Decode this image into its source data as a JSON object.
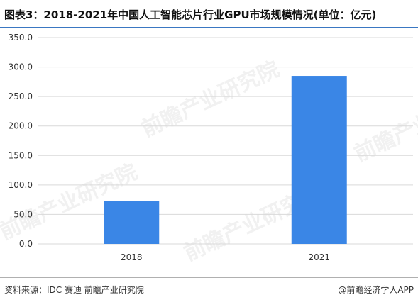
{
  "title": "图表3：2018-2021年中国人工智能芯片行业GPU市场规模情况(单位：亿元)",
  "source": "资料来源：IDC 赛迪 前瞻产业研究院",
  "brand": "@前瞻经济学人APP",
  "watermark_text": "前瞻产业研究院",
  "colors": {
    "bar": "#3a86e6",
    "grid": "#d9d9d9",
    "axis_text": "#333333",
    "title_rule": "#3a77c2"
  },
  "chart_data": {
    "type": "bar",
    "categories": [
      "2018",
      "2021"
    ],
    "values": [
      73,
      285
    ],
    "ylim": [
      0,
      350
    ],
    "yticks": [
      "0.0",
      "50.0",
      "100.0",
      "150.0",
      "200.0",
      "250.0",
      "300.0",
      "350.0"
    ],
    "title": "",
    "xlabel": "",
    "ylabel": "",
    "grid": true,
    "legend": "none"
  }
}
